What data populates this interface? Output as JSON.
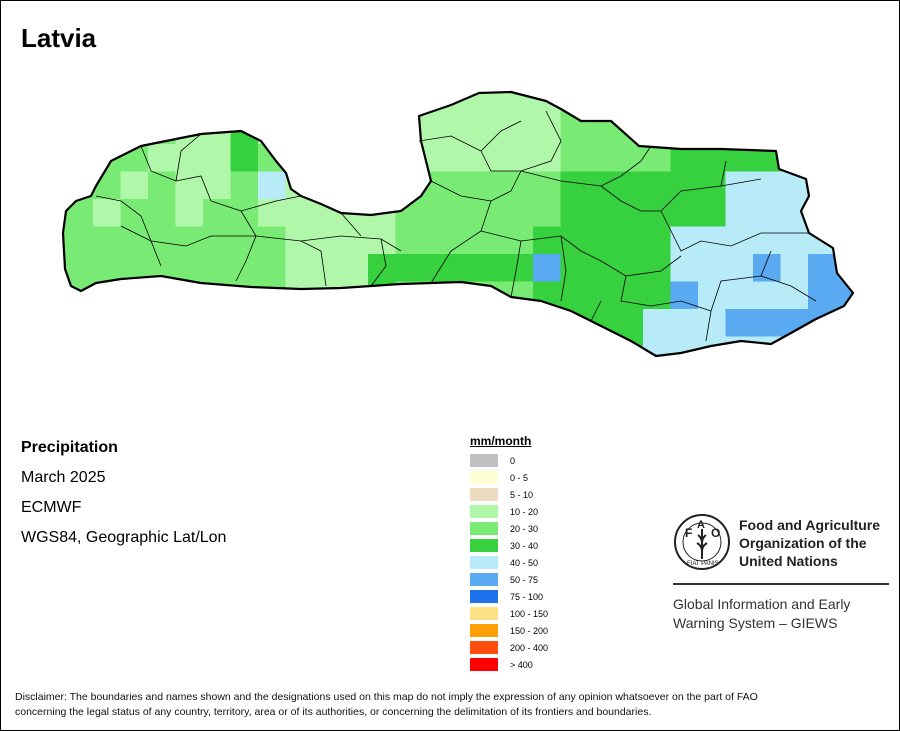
{
  "title": "Latvia",
  "meta": {
    "variable": "Precipitation",
    "period": "March 2025",
    "model": "ECMWF",
    "projection": "WGS84, Geographic Lat/Lon"
  },
  "legend": {
    "title": "mm/month",
    "items": [
      {
        "label": "0",
        "color": "#c0c0c0"
      },
      {
        "label": "0 - 5",
        "color": "#fefed2"
      },
      {
        "label": "5 - 10",
        "color": "#ecdcbe"
      },
      {
        "label": "10 - 20",
        "color": "#b1f7a9"
      },
      {
        "label": "20 - 30",
        "color": "#79eb74"
      },
      {
        "label": "30 - 40",
        "color": "#37d03f"
      },
      {
        "label": "40 - 50",
        "color": "#b7ebf8"
      },
      {
        "label": "50 - 75",
        "color": "#5aaaf2"
      },
      {
        "label": "75 - 100",
        "color": "#1f70ec"
      },
      {
        "label": "100 - 150",
        "color": "#fde084"
      },
      {
        "label": "150 - 200",
        "color": "#fea003"
      },
      {
        "label": "200 - 400",
        "color": "#fe4d0e"
      },
      {
        "label": "> 400",
        "color": "#fe0000"
      }
    ]
  },
  "logo": {
    "org_lines": [
      "Food and Agriculture",
      "Organization of the",
      "United Nations"
    ],
    "logo_letters": "FAO",
    "logo_motto": "FIAT PANIS",
    "program_lines": [
      "Global Information and Early",
      "Warning System – GIEWS"
    ]
  },
  "disclaimer_lines": [
    "Disclaimer: The boundaries and names shown and the designations used on this map do not imply the expression of any opinion whatsoever on the part of FAO",
    "concerning the legal status of any country, territory, area or of its authorities, or concerning the delimitation of its frontiers and boundaries."
  ]
}
